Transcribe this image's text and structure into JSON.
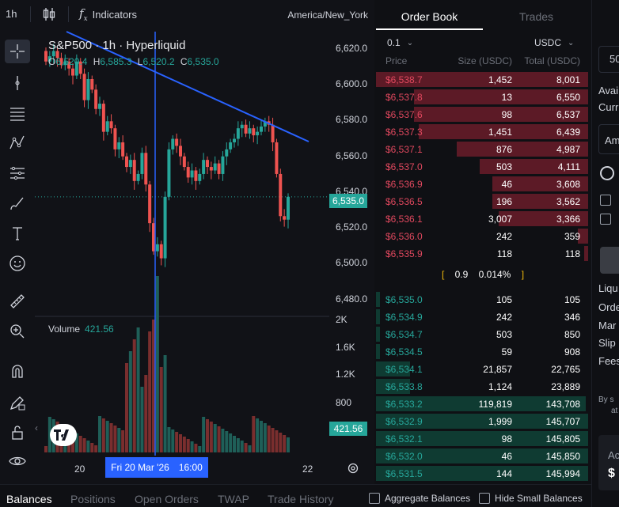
{
  "topbar": {
    "timeframe": "1h",
    "indicators_label": "Indicators",
    "indicators_glyph": "f",
    "indicators_sub": "x",
    "timezone": "America/New_York"
  },
  "legend": {
    "title": "S&P500 · 1h · Hyperliquid",
    "o_key": "O",
    "o_val": "6,520.4",
    "h_key": "H",
    "h_val": "6,585.3",
    "l_key": "L",
    "l_val": "6,520.2",
    "c_key": "C",
    "c_val": "6,535.0"
  },
  "volume": {
    "label": "Volume",
    "value": "421.56"
  },
  "price_axis": {
    "labels": [
      "6,620.0",
      "6,600.0",
      "6,580.0",
      "6,560.0",
      "6,540.0",
      "6,520.0",
      "6,500.0",
      "6,480.0"
    ],
    "last_price": "6,535.0",
    "vol_labels": [
      "2K",
      "1.6K",
      "1.2K",
      "800"
    ],
    "last_volume": "421.56"
  },
  "time_axis": {
    "labels": [
      "20",
      "22"
    ],
    "crosshair_date": "Fri 20 Mar '26",
    "crosshair_time": "16:00"
  },
  "colors": {
    "up": "#26a69a",
    "down": "#ef5350",
    "accent": "#2962ff",
    "ask_bg": "#5c1a26",
    "bid_bg": "#0f3b32"
  },
  "order_book": {
    "tabs": [
      "Order Book",
      "Trades"
    ],
    "tick": "0.1",
    "currency": "USDC",
    "headers": {
      "price": "Price",
      "size": "Size (USDC)",
      "total": "Total (USDC)"
    },
    "asks": [
      {
        "price": "$6,538.7",
        "size": "1,452",
        "total": "8,001",
        "depth": 1.0
      },
      {
        "price": "$6,537.8",
        "size": "13",
        "total": "6,550",
        "depth": 0.82
      },
      {
        "price": "$6,537.6",
        "size": "98",
        "total": "6,537",
        "depth": 0.82
      },
      {
        "price": "$6,537.3",
        "size": "1,451",
        "total": "6,439",
        "depth": 0.8
      },
      {
        "price": "$6,537.1",
        "size": "876",
        "total": "4,987",
        "depth": 0.62
      },
      {
        "price": "$6,537.0",
        "size": "503",
        "total": "4,111",
        "depth": 0.51
      },
      {
        "price": "$6,536.9",
        "size": "46",
        "total": "3,608",
        "depth": 0.45
      },
      {
        "price": "$6,536.5",
        "size": "196",
        "total": "3,562",
        "depth": 0.45
      },
      {
        "price": "$6,536.1",
        "size": "3,007",
        "total": "3,366",
        "depth": 0.42
      },
      {
        "price": "$6,536.0",
        "size": "242",
        "total": "359",
        "depth": 0.05
      },
      {
        "price": "$6,535.9",
        "size": "118",
        "total": "118",
        "depth": 0.02
      }
    ],
    "spread": {
      "value": "0.9",
      "percent": "0.014%"
    },
    "bids": [
      {
        "price": "$6,535.0",
        "size": "105",
        "total": "105",
        "depth": 0.0
      },
      {
        "price": "$6,534.9",
        "size": "242",
        "total": "346",
        "depth": 0.0
      },
      {
        "price": "$6,534.7",
        "size": "503",
        "total": "850",
        "depth": 0.01
      },
      {
        "price": "$6,534.5",
        "size": "59",
        "total": "908",
        "depth": 0.01
      },
      {
        "price": "$6,534.1",
        "size": "21,857",
        "total": "22,765",
        "depth": 0.16
      },
      {
        "price": "$6,533.8",
        "size": "1,124",
        "total": "23,889",
        "depth": 0.16
      },
      {
        "price": "$6,533.2",
        "size": "119,819",
        "total": "143,708",
        "depth": 0.99
      },
      {
        "price": "$6,532.9",
        "size": "1,999",
        "total": "145,707",
        "depth": 1.0
      },
      {
        "price": "$6,532.1",
        "size": "98",
        "total": "145,805",
        "depth": 1.0
      },
      {
        "price": "$6,532.0",
        "size": "46",
        "total": "145,850",
        "depth": 1.0
      },
      {
        "price": "$6,531.5",
        "size": "144",
        "total": "145,994",
        "depth": 1.0
      }
    ]
  },
  "right_panel": {
    "items": [
      "50",
      "Avai",
      "Curr",
      "Am",
      "Liqu",
      "Orde",
      "Mar",
      "Slip",
      "Fees",
      "By s",
      "at",
      "Ac",
      "$"
    ]
  },
  "bottom": {
    "tabs": [
      "Balances",
      "Positions",
      "Open Orders",
      "TWAP",
      "Trade History"
    ],
    "aggregate_label": "Aggregate Balances",
    "hide_small_label": "Hide Small Balances"
  }
}
